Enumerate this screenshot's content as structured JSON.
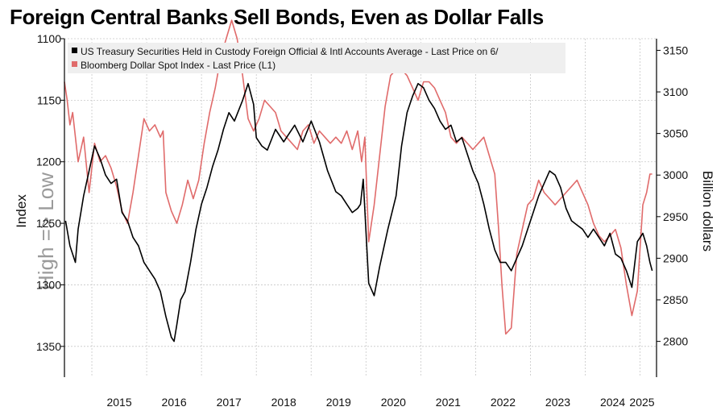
{
  "title": "Foreign Central Banks Sell Bonds, Even as Dollar Falls",
  "chart_data": {
    "type": "line",
    "title": "Foreign Central Banks Sell Bonds, Even as Dollar Falls",
    "left_axis": {
      "label": "Index",
      "inverted": true,
      "ylim": [
        1375,
        1100
      ],
      "ticks": [
        "1100",
        "1150",
        "1200",
        "1250",
        "1300",
        "1350"
      ],
      "tick_values": [
        1100,
        1150,
        1200,
        1250,
        1300,
        1350
      ]
    },
    "right_axis": {
      "label": "Billion dollars",
      "ylim": [
        2757,
        3164
      ],
      "ticks": [
        "2800",
        "2850",
        "2900",
        "2950",
        "3000",
        "3050",
        "3100",
        "3150"
      ],
      "tick_values": [
        2800,
        2850,
        2900,
        2950,
        3000,
        3050,
        3100,
        3150
      ]
    },
    "x_axis": {
      "ticks": [
        "2015",
        "2016",
        "2017",
        "2018",
        "2019",
        "2020",
        "2021",
        "2022",
        "2023",
        "2024",
        "2025"
      ],
      "range": [
        2014.5,
        2025.3
      ]
    },
    "watermark": "High => Low",
    "legend": {
      "position": "top-left",
      "entries": [
        "US Treasury Securities Held in Custody Foreign Official & Intl Accounts Average - Last Price on 6/",
        "Bloomberg Dollar Spot Index - Last Price (L1)"
      ]
    },
    "colors": {
      "treasury": "#000000",
      "dollar": "#e06b6b",
      "grid": "#c8c8c8"
    },
    "series": [
      {
        "name": "US Treasury Securities Held in Custody Foreign Official & Intl Accounts Average - Last Price on 6/",
        "axis": "right",
        "x": [
          2014.52,
          2014.6,
          2014.7,
          2014.75,
          2014.85,
          2014.95,
          2015.05,
          2015.15,
          2015.25,
          2015.35,
          2015.45,
          2015.55,
          2015.65,
          2015.75,
          2015.85,
          2015.95,
          2016.05,
          2016.15,
          2016.25,
          2016.35,
          2016.45,
          2016.5,
          2016.55,
          2016.62,
          2016.7,
          2016.8,
          2016.9,
          2017.0,
          2017.1,
          2017.2,
          2017.3,
          2017.4,
          2017.5,
          2017.6,
          2017.75,
          2017.85,
          2017.95,
          2018.0,
          2018.1,
          2018.2,
          2018.35,
          2018.5,
          2018.7,
          2018.85,
          2019.0,
          2019.15,
          2019.3,
          2019.45,
          2019.55,
          2019.65,
          2019.75,
          2019.85,
          2019.9,
          2019.95,
          2020.05,
          2020.15,
          2020.25,
          2020.4,
          2020.55,
          2020.65,
          2020.75,
          2020.85,
          2020.95,
          2021.05,
          2021.15,
          2021.25,
          2021.35,
          2021.45,
          2021.55,
          2021.65,
          2021.75,
          2021.85,
          2021.95,
          2022.05,
          2022.15,
          2022.25,
          2022.35,
          2022.45,
          2022.55,
          2022.65,
          2022.75,
          2022.85,
          2022.95,
          2023.05,
          2023.15,
          2023.25,
          2023.35,
          2023.45,
          2023.55,
          2023.65,
          2023.75,
          2023.85,
          2023.95,
          2024.05,
          2024.15,
          2024.25,
          2024.35,
          2024.45,
          2024.55,
          2024.65,
          2024.75,
          2024.85,
          2024.95,
          2025.05,
          2025.12,
          2025.18,
          2025.22
        ],
        "values": [
          2945,
          2915,
          2895,
          2935,
          2975,
          3005,
          3035,
          3020,
          3000,
          2990,
          2995,
          2955,
          2945,
          2925,
          2915,
          2895,
          2885,
          2875,
          2860,
          2830,
          2805,
          2800,
          2820,
          2850,
          2860,
          2895,
          2935,
          2965,
          2985,
          3010,
          3030,
          3055,
          3075,
          3065,
          3090,
          3110,
          3085,
          3045,
          3035,
          3030,
          3055,
          3040,
          3060,
          3040,
          3065,
          3040,
          3005,
          2980,
          2975,
          2965,
          2955,
          2960,
          2965,
          2995,
          2870,
          2855,
          2890,
          2935,
          2975,
          3035,
          3075,
          3095,
          3110,
          3105,
          3090,
          3080,
          3065,
          3055,
          3060,
          3040,
          3045,
          3025,
          3005,
          2990,
          2965,
          2935,
          2910,
          2895,
          2895,
          2885,
          2900,
          2915,
          2935,
          2955,
          2975,
          2990,
          3005,
          3000,
          2985,
          2960,
          2945,
          2940,
          2935,
          2925,
          2935,
          2925,
          2915,
          2930,
          2905,
          2900,
          2885,
          2865,
          2920,
          2930,
          2915,
          2895,
          2885
        ]
      },
      {
        "name": "Bloomberg Dollar Spot Index - Last Price (L1)",
        "axis": "left",
        "x": [
          2014.5,
          2014.55,
          2014.6,
          2014.65,
          2014.75,
          2014.85,
          2014.95,
          2015.05,
          2015.15,
          2015.25,
          2015.35,
          2015.45,
          2015.55,
          2015.65,
          2015.75,
          2015.85,
          2015.95,
          2016.05,
          2016.15,
          2016.25,
          2016.3,
          2016.35,
          2016.45,
          2016.55,
          2016.65,
          2016.75,
          2016.85,
          2016.95,
          2017.05,
          2017.15,
          2017.25,
          2017.35,
          2017.45,
          2017.55,
          2017.65,
          2017.75,
          2017.85,
          2017.95,
          2018.05,
          2018.15,
          2018.25,
          2018.35,
          2018.45,
          2018.55,
          2018.65,
          2018.75,
          2018.85,
          2018.95,
          2019.05,
          2019.15,
          2019.25,
          2019.35,
          2019.45,
          2019.55,
          2019.65,
          2019.75,
          2019.85,
          2019.92,
          2019.98,
          2020.05,
          2020.15,
          2020.25,
          2020.35,
          2020.45,
          2020.55,
          2020.65,
          2020.75,
          2020.85,
          2020.95,
          2021.05,
          2021.15,
          2021.25,
          2021.35,
          2021.45,
          2021.55,
          2021.65,
          2021.75,
          2021.85,
          2021.95,
          2022.05,
          2022.15,
          2022.25,
          2022.35,
          2022.42,
          2022.48,
          2022.55,
          2022.65,
          2022.75,
          2022.85,
          2022.95,
          2023.05,
          2023.15,
          2023.25,
          2023.35,
          2023.45,
          2023.55,
          2023.65,
          2023.75,
          2023.85,
          2023.95,
          2024.05,
          2024.15,
          2024.25,
          2024.35,
          2024.45,
          2024.55,
          2024.65,
          2024.75,
          2024.85,
          2024.95,
          2025.05,
          2025.12,
          2025.18,
          2025.22
        ],
        "values": [
          1135,
          1150,
          1170,
          1160,
          1200,
          1180,
          1225,
          1185,
          1200,
          1195,
          1205,
          1220,
          1240,
          1250,
          1225,
          1195,
          1165,
          1175,
          1170,
          1180,
          1175,
          1225,
          1240,
          1250,
          1235,
          1215,
          1230,
          1215,
          1185,
          1160,
          1140,
          1115,
          1100,
          1085,
          1100,
          1130,
          1165,
          1175,
          1165,
          1150,
          1155,
          1160,
          1175,
          1180,
          1185,
          1190,
          1175,
          1170,
          1185,
          1175,
          1180,
          1185,
          1180,
          1185,
          1175,
          1190,
          1175,
          1200,
          1180,
          1265,
          1235,
          1195,
          1155,
          1130,
          1125,
          1125,
          1130,
          1140,
          1150,
          1135,
          1135,
          1140,
          1150,
          1160,
          1180,
          1185,
          1180,
          1185,
          1190,
          1185,
          1180,
          1195,
          1210,
          1255,
          1300,
          1340,
          1335,
          1275,
          1255,
          1235,
          1230,
          1215,
          1225,
          1230,
          1235,
          1230,
          1225,
          1220,
          1215,
          1225,
          1235,
          1250,
          1260,
          1265,
          1260,
          1255,
          1270,
          1300,
          1325,
          1305,
          1235,
          1225,
          1210,
          1210
        ]
      }
    ]
  }
}
